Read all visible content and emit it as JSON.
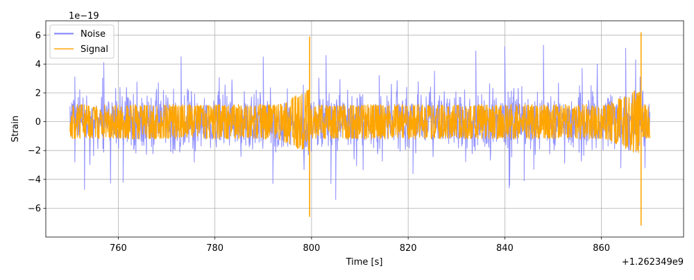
{
  "chart_data": {
    "type": "line",
    "xlabel": "Time [s]",
    "ylabel": "Strain",
    "y_scale_label": "1e−19",
    "x_offset_label": "+1.262349e9",
    "xlim": [
      745,
      877
    ],
    "ylim": [
      -8.0,
      7.0
    ],
    "y_multiplier": 1e-19,
    "x_offset": 1262349000,
    "x_ticks": [
      760,
      780,
      800,
      820,
      840,
      860
    ],
    "x_tick_labels": [
      "760",
      "780",
      "800",
      "820",
      "840",
      "860"
    ],
    "y_ticks": [
      -6,
      -4,
      -2,
      0,
      2,
      4,
      6
    ],
    "y_tick_labels": [
      "−6",
      "−4",
      "−2",
      "0",
      "2",
      "4",
      "6"
    ],
    "grid": true,
    "legend_position": "top-left",
    "data_x_range": [
      750,
      870
    ],
    "series": [
      {
        "name": "Noise",
        "color": "#7f7fff",
        "typical_amplitude": 2.0,
        "peaks": [
          {
            "x": 751,
            "y": 3.1
          },
          {
            "x": 751,
            "y": -2.8
          },
          {
            "x": 757,
            "y": 4.1
          },
          {
            "x": 753,
            "y": -4.7
          },
          {
            "x": 773,
            "y": 4.5
          },
          {
            "x": 761,
            "y": -4.2
          },
          {
            "x": 790,
            "y": 4.5
          },
          {
            "x": 792,
            "y": -4.3
          },
          {
            "x": 803,
            "y": 4.6
          },
          {
            "x": 805,
            "y": -5.4
          },
          {
            "x": 814,
            "y": 3.2
          },
          {
            "x": 804,
            "y": -4.3
          },
          {
            "x": 834,
            "y": 4.9
          },
          {
            "x": 821,
            "y": -3.6
          },
          {
            "x": 840,
            "y": 5.2
          },
          {
            "x": 841,
            "y": -4.4
          },
          {
            "x": 848,
            "y": 5.3
          },
          {
            "x": 844,
            "y": -4.1
          },
          {
            "x": 856,
            "y": 3.7
          },
          {
            "x": 846,
            "y": -3.3
          },
          {
            "x": 865,
            "y": 5.1
          },
          {
            "x": 864,
            "y": -3.2
          },
          {
            "x": 868,
            "y": 3.1
          },
          {
            "x": 869,
            "y": -3.2
          }
        ]
      },
      {
        "name": "Signal",
        "color": "#ffa500",
        "typical_amplitude": 1.2,
        "spikes": [
          {
            "x": 799.6,
            "y_max": 5.9,
            "y_min": -6.6
          },
          {
            "x": 868.2,
            "y_max": 6.2,
            "y_min": -7.2
          }
        ]
      }
    ]
  }
}
